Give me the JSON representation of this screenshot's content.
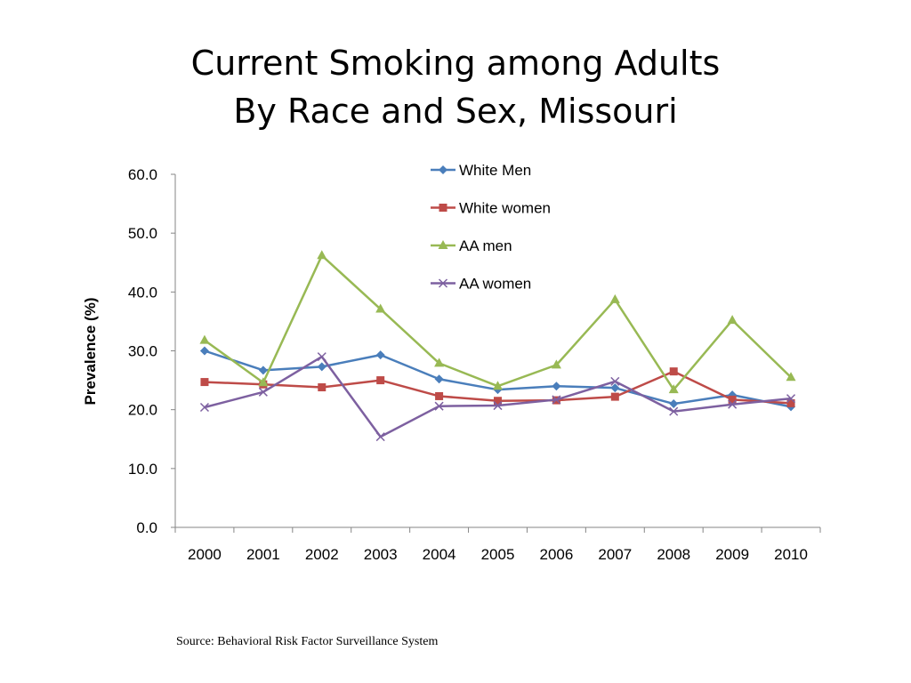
{
  "title_line1": "Current Smoking among Adults",
  "title_line2": "By Race and Sex, Missouri",
  "source": "Source: Behavioral Risk Factor Surveillance System",
  "chart_data": {
    "type": "line",
    "ylabel": "Prevalence (%)",
    "xlabel": "",
    "ylim": [
      0,
      60
    ],
    "yticks": [
      "0.0",
      "10.0",
      "20.0",
      "30.0",
      "40.0",
      "50.0",
      "60.0"
    ],
    "categories": [
      "2000",
      "2001",
      "2002",
      "2003",
      "2004",
      "2005",
      "2006",
      "2007",
      "2008",
      "2009",
      "2010"
    ],
    "grid": false,
    "legend_position": "top-right",
    "series": [
      {
        "name": "White Men",
        "color": "#4a7ebb",
        "marker": "diamond",
        "values": [
          30.0,
          26.7,
          27.3,
          29.3,
          25.2,
          23.4,
          24.0,
          23.7,
          21.0,
          22.5,
          20.5
        ]
      },
      {
        "name": "White women",
        "color": "#be4b48",
        "marker": "square",
        "values": [
          24.7,
          24.3,
          23.8,
          25.0,
          22.3,
          21.5,
          21.6,
          22.2,
          26.5,
          21.7,
          21.1
        ]
      },
      {
        "name": "AA men",
        "color": "#98b954",
        "marker": "triangle",
        "values": [
          31.8,
          24.6,
          46.2,
          37.1,
          27.9,
          24.0,
          27.6,
          38.7,
          23.4,
          35.2,
          25.5
        ]
      },
      {
        "name": "AA women",
        "color": "#7d60a0",
        "marker": "x",
        "values": [
          20.4,
          23.0,
          29.0,
          15.4,
          20.6,
          20.7,
          21.7,
          24.8,
          19.7,
          20.9,
          21.9
        ]
      }
    ]
  }
}
